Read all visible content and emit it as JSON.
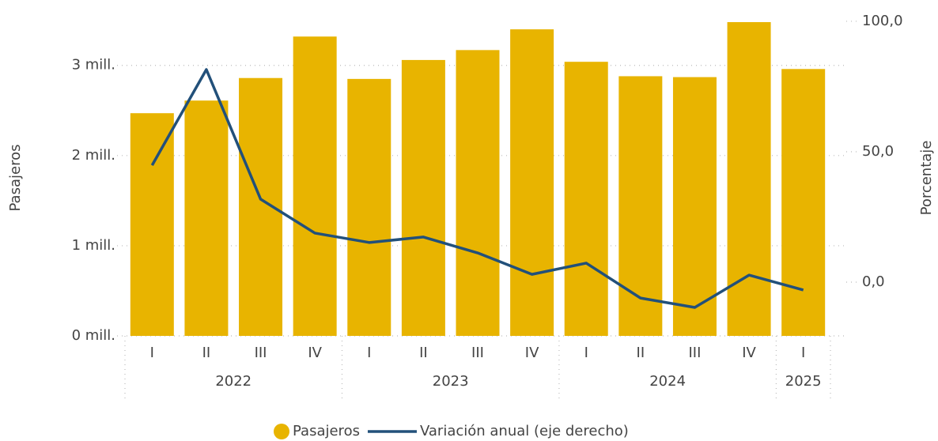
{
  "chart_data": {
    "type": "bar_line",
    "y_label": "Pasajeros",
    "y2_label": "Porcentaje",
    "groups": [
      {
        "name": "2022",
        "categories": [
          "I",
          "II",
          "III",
          "IV"
        ]
      },
      {
        "name": "2023",
        "categories": [
          "I",
          "II",
          "III",
          "IV"
        ]
      },
      {
        "name": "2024",
        "categories": [
          "I",
          "II",
          "III",
          "IV"
        ]
      },
      {
        "name": "2025",
        "categories": [
          "I"
        ]
      }
    ],
    "series": [
      {
        "name": "Pasajeros",
        "type": "bar",
        "color": "#e8b400",
        "values": [
          2470000,
          2610000,
          2860000,
          3320000,
          2850000,
          3060000,
          3170000,
          3400000,
          3040000,
          2880000,
          2870000,
          3480000,
          2960000
        ]
      },
      {
        "name": "Variación anual (eje derecho)",
        "type": "line",
        "axis": "y2",
        "color": "#22507a",
        "values": [
          44.8,
          81.5,
          31.8,
          18.8,
          15.2,
          17.3,
          11.2,
          3.0,
          7.3,
          -6.1,
          -9.7,
          2.7,
          -3.0
        ]
      }
    ],
    "ylim": [
      0,
      3550000
    ],
    "yticks": [
      {
        "value": 0,
        "label": "0 mill."
      },
      {
        "value": 1000000,
        "label": "1 mill."
      },
      {
        "value": 2000000,
        "label": "2 mill."
      },
      {
        "value": 3000000,
        "label": "3 mill."
      }
    ],
    "y2lim": [
      -20.6,
      102.1
    ],
    "y2ticks": [
      {
        "value": 0,
        "label": "0,0"
      },
      {
        "value": 50,
        "label": "50,0"
      },
      {
        "value": 100,
        "label": "100,0"
      }
    ],
    "grid": true
  }
}
